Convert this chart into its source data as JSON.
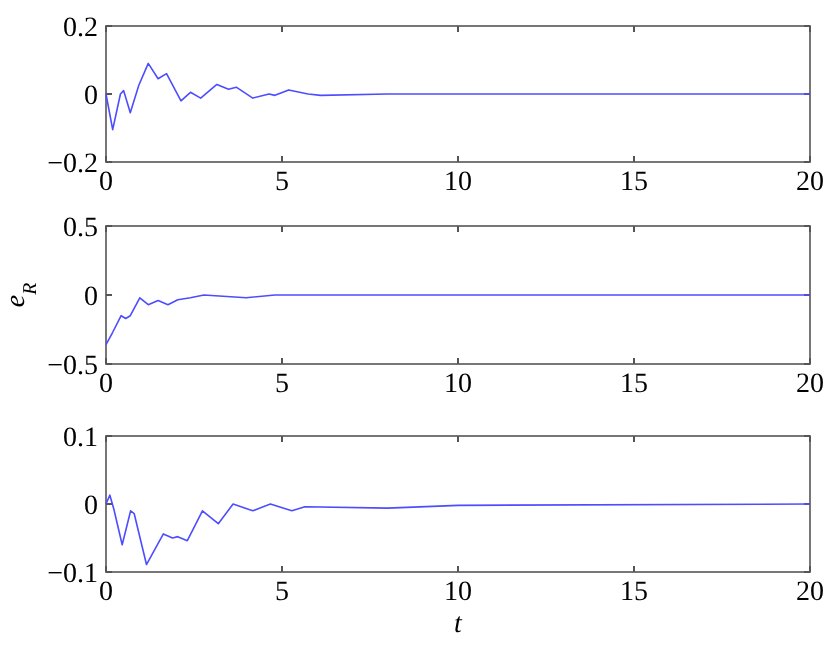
{
  "chart_data": [
    {
      "type": "line",
      "xlim": [
        0,
        20
      ],
      "ylim": [
        -0.2,
        0.2
      ],
      "xticks": [
        0,
        5,
        10,
        15,
        20
      ],
      "yticks": [
        -0.2,
        0,
        0.2
      ],
      "grid": false,
      "series": [
        {
          "color": "#4d4dff",
          "x": [
            0,
            0.19,
            0.41,
            0.5,
            0.69,
            0.93,
            1.2,
            1.48,
            1.72,
            2.13,
            2.4,
            2.69,
            3.15,
            3.48,
            3.7,
            4.17,
            4.63,
            4.8,
            5.19,
            5.74,
            6.1,
            8,
            20
          ],
          "values": [
            0,
            -0.105,
            0,
            0.01,
            -0.055,
            0.025,
            0.09,
            0.045,
            0.06,
            -0.02,
            0.005,
            -0.012,
            0.028,
            0.014,
            0.02,
            -0.012,
            0,
            -0.004,
            0.012,
            0,
            -0.004,
            0,
            0
          ]
        }
      ]
    },
    {
      "type": "line",
      "ylabel": "e$_{R}$",
      "xlim": [
        0,
        20
      ],
      "ylim": [
        -0.5,
        0.5
      ],
      "xticks": [
        0,
        5,
        10,
        15,
        20
      ],
      "yticks": [
        -0.5,
        0,
        0.5
      ],
      "grid": false,
      "series": [
        {
          "color": "#4d4dff",
          "x": [
            0,
            0.19,
            0.43,
            0.56,
            0.69,
            0.96,
            1.2,
            1.48,
            1.76,
            2.04,
            2.4,
            2.78,
            3.98,
            4.8,
            20
          ],
          "values": [
            -0.36,
            -0.27,
            -0.15,
            -0.17,
            -0.15,
            -0.02,
            -0.07,
            -0.04,
            -0.07,
            -0.035,
            -0.02,
            0,
            -0.02,
            0,
            0
          ]
        }
      ]
    },
    {
      "type": "line",
      "xlabel": "t",
      "xlim": [
        0,
        20
      ],
      "ylim": [
        -0.1,
        0.1
      ],
      "xticks": [
        0,
        5,
        10,
        15,
        20
      ],
      "yticks": [
        -0.1,
        0,
        0.1
      ],
      "grid": false,
      "series": [
        {
          "color": "#4d4dff",
          "x": [
            0,
            0.11,
            0.22,
            0.46,
            0.7,
            0.8,
            1.15,
            1.63,
            1.89,
            2.04,
            2.31,
            2.74,
            3.19,
            3.61,
            4.17,
            4.67,
            5.28,
            5.65,
            8,
            10,
            20
          ],
          "values": [
            0,
            0.013,
            -0.007,
            -0.06,
            -0.01,
            -0.014,
            -0.089,
            -0.044,
            -0.05,
            -0.048,
            -0.054,
            -0.01,
            -0.029,
            0,
            -0.01,
            0,
            -0.01,
            -0.004,
            -0.006,
            -0.002,
            0
          ]
        }
      ]
    }
  ]
}
